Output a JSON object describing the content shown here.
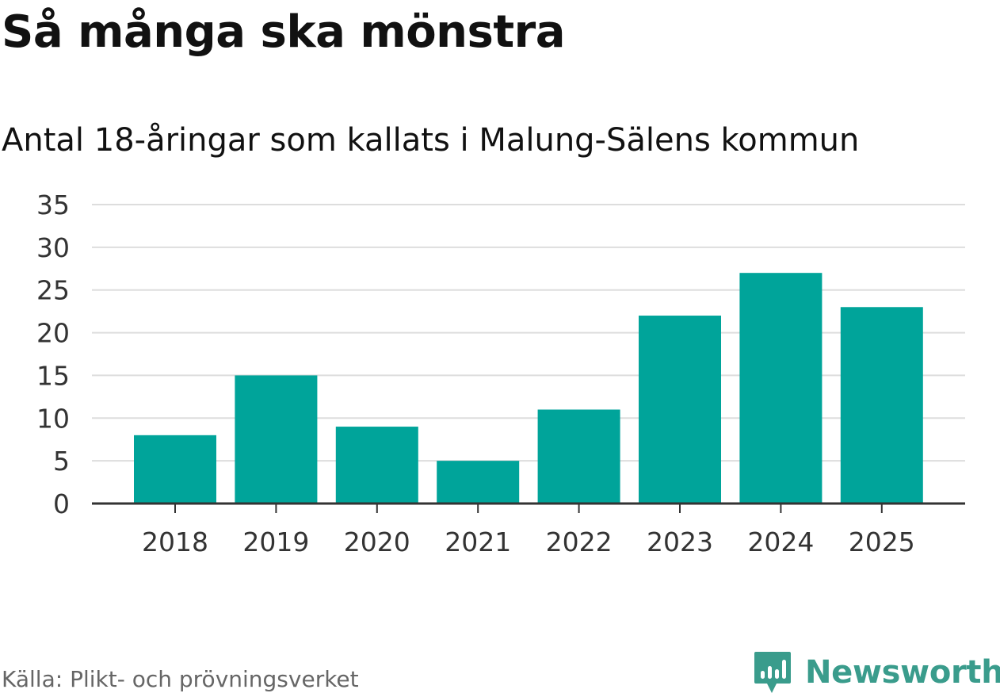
{
  "header": {
    "title": "Så många ska mönstra",
    "subtitle": "Antal 18-åringar som kallats i Malung-Sälens kommun"
  },
  "footer": {
    "source": "Källa: Plikt- och prövningsverket",
    "brand": "Newsworthy",
    "brand_icon": "newsworthy-logo-icon",
    "brand_color": "#3a9c8c"
  },
  "chart_data": {
    "type": "bar",
    "categories": [
      "2018",
      "2019",
      "2020",
      "2021",
      "2022",
      "2023",
      "2024",
      "2025"
    ],
    "values": [
      8,
      15,
      9,
      5,
      11,
      22,
      27,
      23
    ],
    "title": "Så många ska mönstra",
    "subtitle": "Antal 18-åringar som kallats i Malung-Sälens kommun",
    "xlabel": "",
    "ylabel": "",
    "ylim": [
      0,
      35
    ],
    "yticks": [
      0,
      5,
      10,
      15,
      20,
      25,
      30,
      35
    ],
    "grid": true,
    "legend": "none",
    "bar_color": "#00a49a",
    "gridline_color": "#dddddd",
    "axis_color": "#333333"
  }
}
